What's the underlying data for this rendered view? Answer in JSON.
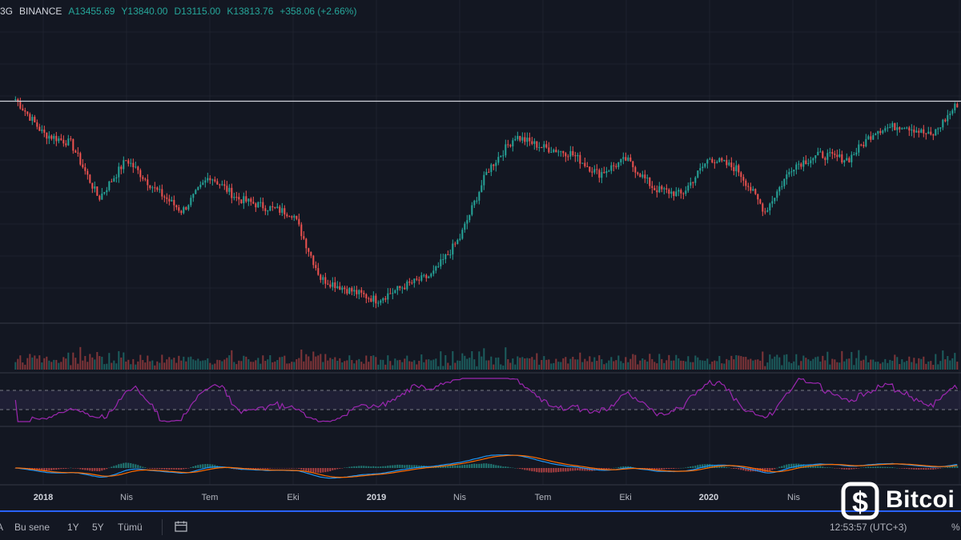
{
  "header": {
    "interval": "3G",
    "exchange": "BINANCE",
    "open": "A13455.69",
    "high": "Y13840.00",
    "low": "D13115.00",
    "close": "K13813.76",
    "change": "+358.06 (+2.66%)"
  },
  "x_axis": {
    "labels": [
      "2018",
      "Nis",
      "Tem",
      "Eki",
      "2019",
      "Nis",
      "Tem",
      "Eki",
      "2020",
      "Nis"
    ]
  },
  "bottom_bar": {
    "range_first": "A",
    "range_ytd": "Bu sene",
    "range_1y": "1Y",
    "range_5y": "5Y",
    "range_all": "Tümü",
    "clock": "12:53:57 (UTC+3)",
    "percent": "%"
  },
  "watermark": {
    "text": "Bitcoi",
    "icon": "bitcoin-logo-icon"
  },
  "colors": {
    "background": "#131722",
    "up": "#26a69a",
    "down": "#ef5350",
    "rsi_line": "#9c27b0",
    "macd_line": "#2196f3",
    "signal_line": "#ff6d00",
    "resistance_line": "#d1d4dc",
    "accent": "#2962ff"
  },
  "chart_data": {
    "type": "candlestick",
    "symbol": "BTC",
    "exchange": "BINANCE",
    "interval": "3G",
    "price_series": {
      "x": [
        "2017-12",
        "2018-01",
        "2018-02",
        "2018-03",
        "2018-04",
        "2018-05",
        "2018-06",
        "2018-07",
        "2018-08",
        "2018-09",
        "2018-10",
        "2018-11",
        "2018-12",
        "2019-01",
        "2019-02",
        "2019-03",
        "2019-04",
        "2019-05",
        "2019-06",
        "2019-07",
        "2019-08",
        "2019-09",
        "2019-10",
        "2019-11",
        "2019-12",
        "2020-01",
        "2020-02",
        "2020-03",
        "2020-04",
        "2020-05",
        "2020-06",
        "2020-07",
        "2020-08",
        "2020-09",
        "2020-10"
      ],
      "close": [
        14000,
        11000,
        10300,
        7000,
        9200,
        7500,
        6400,
        8200,
        7000,
        6600,
        6300,
        4000,
        3700,
        3450,
        3800,
        4100,
        5300,
        8500,
        10800,
        10000,
        9600,
        8300,
        9200,
        7500,
        7200,
        9300,
        8600,
        6400,
        8800,
        9500,
        9200,
        11300,
        11700,
        10800,
        13800
      ]
    },
    "resistance_level": 13800,
    "panels": [
      "price",
      "volume",
      "RSI",
      "MACD"
    ],
    "rsi_bands": [
      30,
      70
    ]
  }
}
